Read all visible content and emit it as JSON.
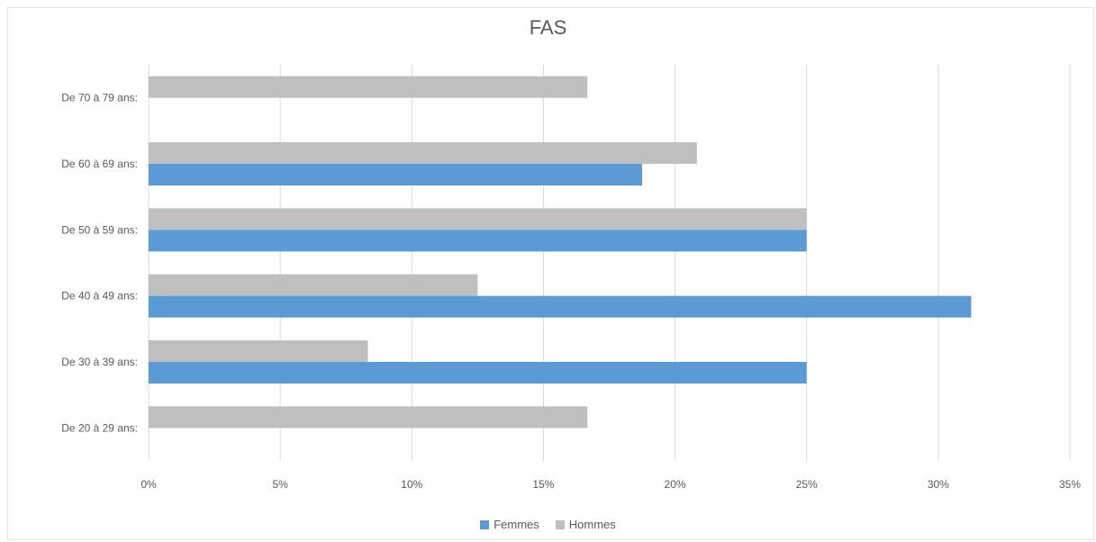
{
  "chart_data": {
    "type": "bar",
    "orientation": "horizontal",
    "title": "FAS",
    "xlabel": "",
    "ylabel": "",
    "categories": [
      "De 20 à 29 ans:",
      "De 30 à 39 ans:",
      "De 40 à 49 ans:",
      "De 50 à 59 ans:",
      "De 60 à 69 ans:",
      "De 70 à 79 ans:"
    ],
    "series": [
      {
        "name": "Femmes",
        "color": "#5b9bd5",
        "values": [
          0,
          25.0,
          31.25,
          25.0,
          18.75,
          0
        ]
      },
      {
        "name": "Hommes",
        "color": "#bfbfbf",
        "values": [
          16.67,
          8.33,
          12.5,
          25.0,
          20.83,
          16.67
        ]
      }
    ],
    "xlim": [
      0,
      35
    ],
    "x_ticks": [
      "0%",
      "5%",
      "10%",
      "15%",
      "20%",
      "25%",
      "30%",
      "35%"
    ],
    "grid": true,
    "legend_position": "bottom"
  }
}
